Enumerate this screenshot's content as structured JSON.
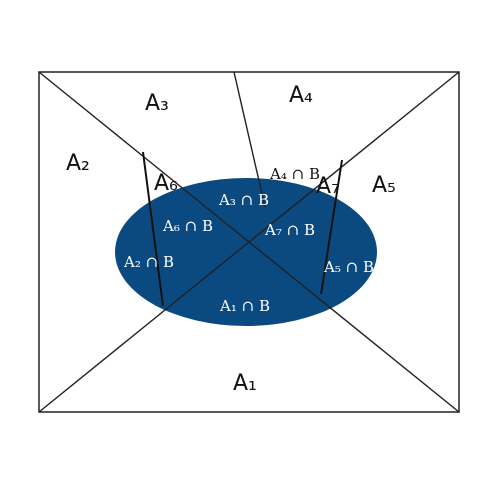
{
  "diagram": {
    "colors": {
      "set_b_fill": "#0b4a80",
      "lines": "#222222",
      "outer_text": "#111111",
      "inner_text": "#ffffff",
      "background": "#ffffff"
    },
    "outer_labels": {
      "a1": "A₁",
      "a2": "A₂",
      "a3": "A₃",
      "a4": "A₄",
      "a5": "A₅",
      "a6": "A₆",
      "a7": "A₇"
    },
    "intersection_labels": {
      "a1b": "A₁ ∩ B",
      "a2b": "A₂ ∩ B",
      "a3b": "A₃ ∩ B",
      "a4b": "A₄ ∩ B",
      "a5b": "A₅ ∩ B",
      "a6b": "A₆ ∩ B",
      "a7b": "A₇ ∩ B"
    }
  }
}
